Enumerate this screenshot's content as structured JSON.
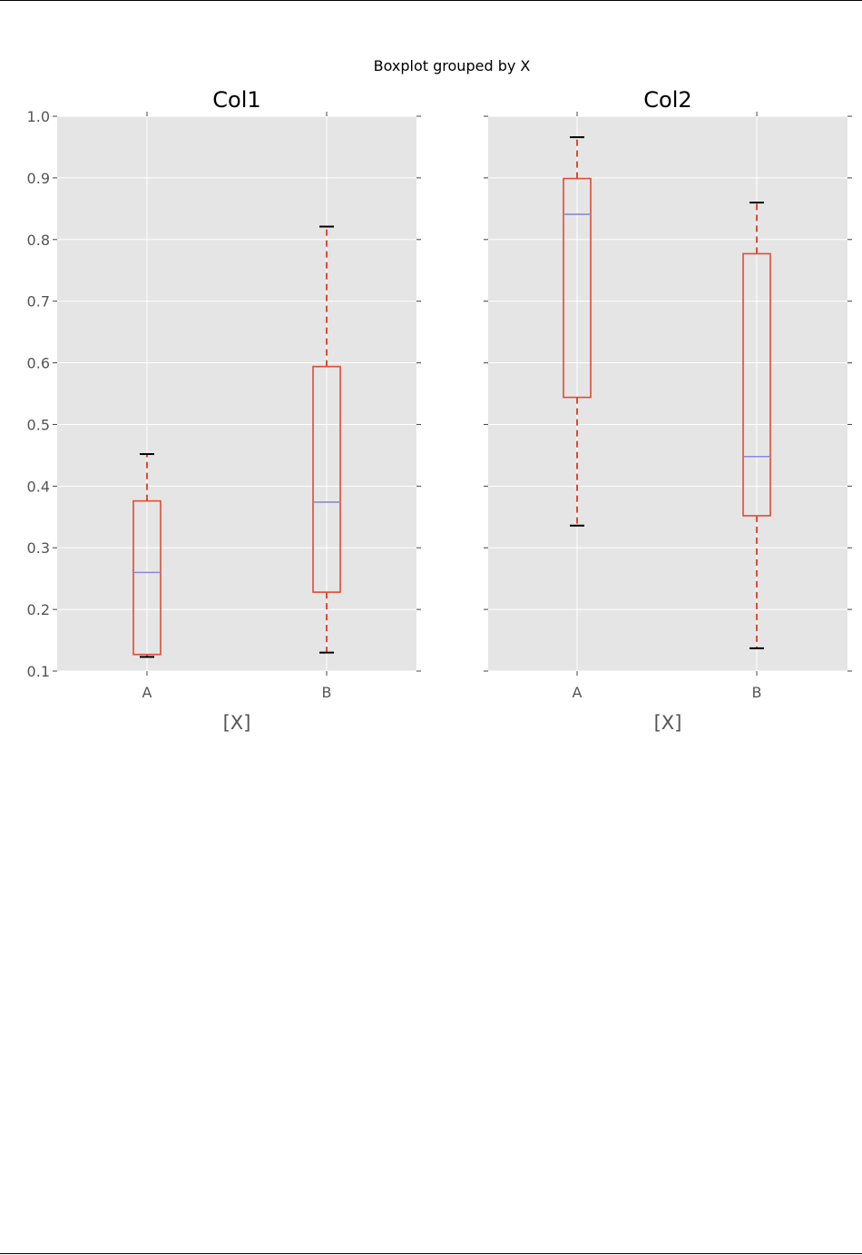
{
  "figure": {
    "suptitle": "Boxplot grouped by X"
  },
  "chart_data": [
    {
      "type": "box",
      "title": "Col1",
      "xlabel": "[X]",
      "ylabel": "",
      "ylim": [
        0.1,
        1.0
      ],
      "yticks": [
        "0.1",
        "0.2",
        "0.3",
        "0.4",
        "0.5",
        "0.6",
        "0.7",
        "0.8",
        "0.9",
        "1.0"
      ],
      "grid": true,
      "categories": [
        "A",
        "B"
      ],
      "boxes": [
        {
          "category": "A",
          "whisker_low": 0.123,
          "q1": 0.127,
          "median": 0.26,
          "q3": 0.376,
          "whisker_high": 0.452
        },
        {
          "category": "B",
          "whisker_low": 0.13,
          "q1": 0.228,
          "median": 0.374,
          "q3": 0.594,
          "whisker_high": 0.821
        }
      ]
    },
    {
      "type": "box",
      "title": "Col2",
      "xlabel": "[X]",
      "ylabel": "",
      "ylim": [
        0.1,
        1.0
      ],
      "yticks": [
        "0.1",
        "0.2",
        "0.3",
        "0.4",
        "0.5",
        "0.6",
        "0.7",
        "0.8",
        "0.9",
        "1.0"
      ],
      "show_ytick_labels": false,
      "grid": true,
      "categories": [
        "A",
        "B"
      ],
      "boxes": [
        {
          "category": "A",
          "whisker_low": 0.336,
          "q1": 0.544,
          "median": 0.841,
          "q3": 0.899,
          "whisker_high": 0.966
        },
        {
          "category": "B",
          "whisker_low": 0.137,
          "q1": 0.352,
          "median": 0.448,
          "q3": 0.777,
          "whisker_high": 0.86
        }
      ]
    }
  ],
  "colors": {
    "panel_bg": "#e5e5e5",
    "grid": "#ffffff",
    "box": "#e24a33",
    "median": "#8b87d8",
    "cap": "#000000",
    "tick_label": "#555555",
    "text": "#000000"
  }
}
